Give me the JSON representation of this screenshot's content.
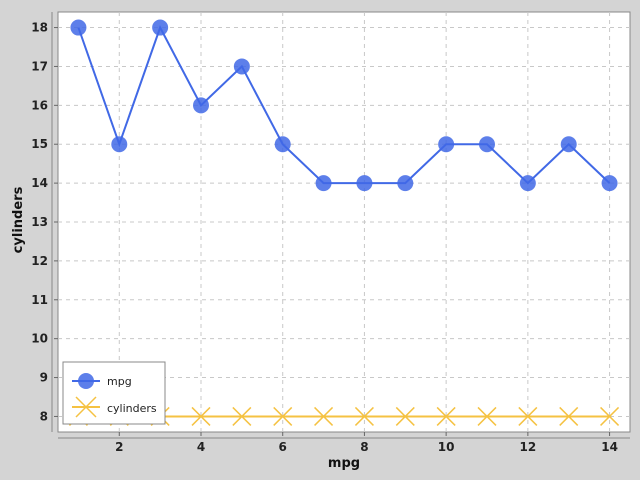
{
  "chart_data": {
    "type": "line",
    "xlabel": "mpg",
    "ylabel": "cylinders",
    "xlim": [
      0.5,
      14.5
    ],
    "ylim": [
      7.6,
      18.4
    ],
    "xticks": [
      2,
      4,
      6,
      8,
      10,
      12,
      14
    ],
    "yticks": [
      8,
      9,
      10,
      11,
      12,
      13,
      14,
      15,
      16,
      17,
      18
    ],
    "x": [
      1,
      2,
      3,
      4,
      5,
      6,
      7,
      8,
      9,
      10,
      11,
      12,
      13,
      14
    ],
    "grid": true,
    "legend_position": "bottom-left",
    "series": [
      {
        "name": "mpg",
        "marker": "circle",
        "color": "#4169e6",
        "values": [
          18,
          15,
          18,
          16,
          17,
          15,
          14,
          14,
          14,
          15,
          15,
          14,
          15,
          14
        ]
      },
      {
        "name": "cylinders",
        "marker": "x",
        "color": "#f5c242",
        "values": [
          8,
          8,
          8,
          8,
          8,
          8,
          8,
          8,
          8,
          8,
          8,
          8,
          8,
          8
        ]
      }
    ]
  },
  "colors": {
    "background": "#d4d4d4",
    "plot_background": "#ffffff",
    "grid": "#c8c8c8"
  }
}
